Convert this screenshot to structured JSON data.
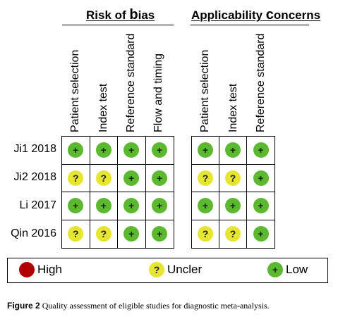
{
  "groups": {
    "risk_of_bias": {
      "title_prefix": "Risk of ",
      "title_big": "b",
      "title_suffix": "ias"
    },
    "applicability": {
      "title_prefix": "Applicability ",
      "title_big": "c",
      "title_suffix": "oncerns"
    }
  },
  "risk_of_bias_columns": [
    "Patient selection",
    "Index  test",
    "Reference  standard",
    "Flow and  timing"
  ],
  "applicability_columns": [
    "Patient selection",
    "Index  test",
    "Reference  standard"
  ],
  "studies": [
    {
      "name": "Ji1 2018",
      "risk_of_bias": [
        "low",
        "low",
        "low",
        "low"
      ],
      "applicability": [
        "low",
        "low",
        "low"
      ]
    },
    {
      "name": "Ji2 2018",
      "risk_of_bias": [
        "unclear",
        "unclear",
        "low",
        "low"
      ],
      "applicability": [
        "unclear",
        "unclear",
        "low"
      ]
    },
    {
      "name": "Li 2017",
      "risk_of_bias": [
        "low",
        "low",
        "low",
        "low"
      ],
      "applicability": [
        "low",
        "low",
        "low"
      ]
    },
    {
      "name": "Qin 2016",
      "risk_of_bias": [
        "unclear",
        "unclear",
        "low",
        "low"
      ],
      "applicability": [
        "unclear",
        "unclear",
        "low"
      ]
    }
  ],
  "symbols": {
    "low": "+",
    "unclear": "?",
    "high": ""
  },
  "legend": {
    "high": "High",
    "unclear": "Uncler",
    "low": "Low"
  },
  "colors": {
    "low": "#5cb82e",
    "unclear": "#e6e632",
    "high": "#b00000"
  },
  "caption": {
    "label": "Figure 2",
    "text": " Quality assessment of eligible studies for diagnostic meta-analysis."
  }
}
